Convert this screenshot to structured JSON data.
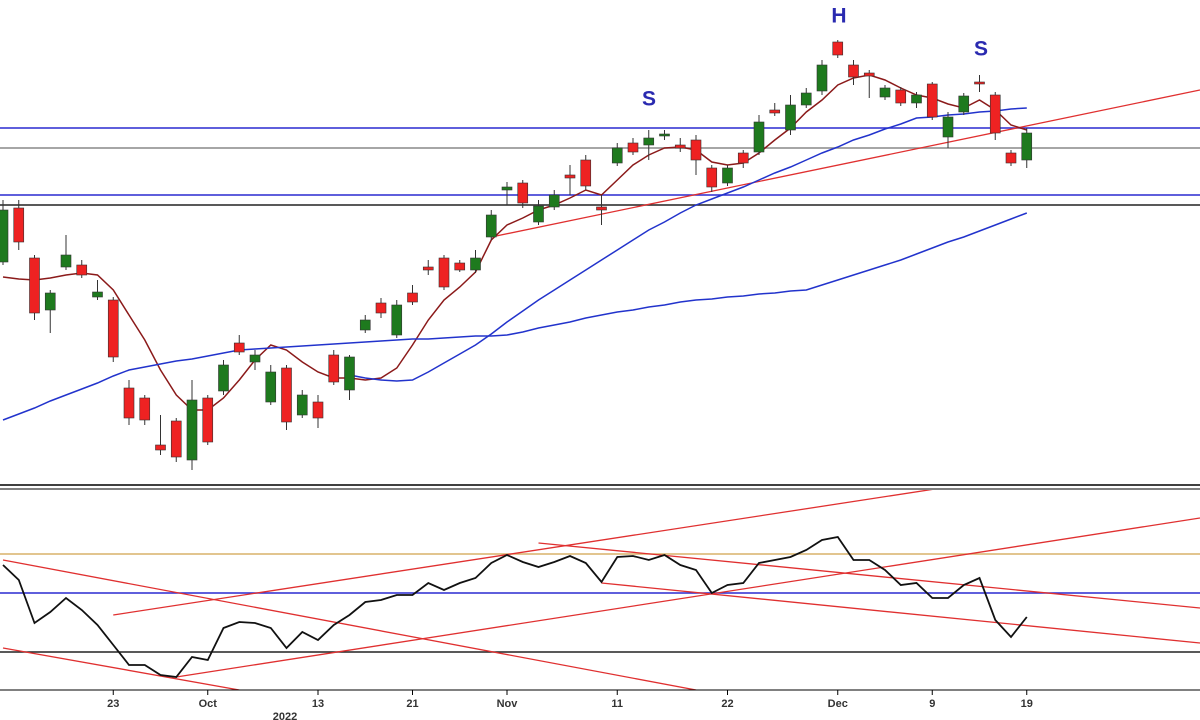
{
  "chart_data": [
    {
      "type": "candlestick",
      "ylim": [
        0,
        485
      ],
      "up_color": "#1e7a1e",
      "down_color": "#ee2222",
      "open": [
        223,
        277,
        227,
        175,
        218,
        220,
        188,
        185,
        97,
        87,
        40,
        64,
        25,
        87,
        94,
        142,
        123,
        83,
        117,
        70,
        83,
        130,
        95,
        155,
        182,
        150,
        192,
        218,
        227,
        222,
        215,
        248,
        295,
        302,
        263,
        278,
        310,
        325,
        278,
        322,
        342,
        340,
        349,
        340,
        345,
        317,
        302,
        332,
        333,
        375,
        355,
        380,
        394,
        443,
        420,
        412,
        388,
        395,
        382,
        401,
        348,
        373,
        403,
        390,
        332,
        325
      ],
      "high": [
        285,
        285,
        230,
        195,
        250,
        225,
        205,
        188,
        105,
        90,
        70,
        67,
        105,
        90,
        125,
        150,
        135,
        120,
        120,
        95,
        90,
        135,
        130,
        170,
        187,
        185,
        200,
        225,
        230,
        225,
        235,
        275,
        303,
        305,
        285,
        295,
        320,
        330,
        290,
        342,
        347,
        355,
        355,
        347,
        350,
        320,
        320,
        335,
        370,
        382,
        390,
        397,
        425,
        445,
        425,
        415,
        400,
        398,
        393,
        403,
        373,
        392,
        410,
        393,
        335,
        357
      ],
      "low": [
        220,
        235,
        165,
        152,
        215,
        207,
        185,
        123,
        60,
        60,
        30,
        23,
        15,
        40,
        90,
        130,
        115,
        80,
        55,
        67,
        57,
        100,
        85,
        152,
        167,
        147,
        180,
        210,
        195,
        213,
        212,
        245,
        280,
        277,
        260,
        275,
        290,
        295,
        260,
        319,
        330,
        325,
        345,
        333,
        310,
        293,
        299,
        317,
        330,
        369,
        350,
        377,
        390,
        427,
        400,
        387,
        385,
        379,
        377,
        365,
        337,
        370,
        393,
        345,
        319,
        317
      ],
      "close": [
        275,
        243,
        172,
        192,
        230,
        210,
        193,
        128,
        67,
        65,
        35,
        28,
        85,
        43,
        120,
        133,
        130,
        113,
        63,
        90,
        67,
        103,
        128,
        165,
        172,
        180,
        183,
        215,
        198,
        215,
        227,
        270,
        298,
        282,
        279,
        290,
        307,
        299,
        275,
        337,
        333,
        347,
        351,
        337,
        325,
        298,
        317,
        322,
        363,
        372,
        380,
        392,
        420,
        430,
        408,
        409,
        397,
        382,
        390,
        368,
        368,
        389,
        401,
        352,
        322,
        352
      ],
      "lines": [
        {
          "color": "#8b1a1a",
          "values": [
            208,
            206,
            205,
            207,
            210,
            212,
            210,
            195,
            170,
            145,
            115,
            90,
            75,
            75,
            87,
            105,
            125,
            140,
            135,
            123,
            113,
            107,
            107,
            105,
            107,
            117,
            140,
            165,
            185,
            198,
            213,
            245,
            260,
            267,
            275,
            280,
            287,
            295,
            290,
            305,
            320,
            330,
            337,
            338,
            335,
            323,
            320,
            322,
            332,
            345,
            357,
            373,
            385,
            400,
            407,
            410,
            405,
            397,
            390,
            387,
            381,
            377,
            385,
            375,
            360,
            355
          ]
        },
        {
          "color": "#2233cc",
          "values": [
            null,
            null,
            null,
            null,
            null,
            null,
            null,
            null,
            null,
            null,
            null,
            null,
            null,
            null,
            null,
            null,
            null,
            null,
            null,
            null,
            null,
            null,
            110,
            107,
            105,
            104,
            105,
            113,
            122,
            131,
            140,
            151,
            163,
            174,
            185,
            195,
            205,
            215,
            225,
            235,
            245,
            255,
            263,
            272,
            280,
            286,
            292,
            298,
            305,
            312,
            318,
            325,
            332,
            338,
            345,
            350,
            356,
            361,
            367,
            368,
            370,
            371,
            373,
            374,
            376,
            377
          ]
        },
        {
          "color": "#2233cc",
          "values": [
            65,
            71,
            77,
            84,
            90,
            96,
            102,
            109,
            115,
            118,
            121,
            124,
            126,
            129,
            132,
            135,
            136,
            137,
            138,
            139,
            140,
            141,
            142,
            143,
            144,
            145,
            146,
            146,
            147,
            148,
            149,
            149,
            150,
            153,
            157,
            160,
            163,
            167,
            170,
            173,
            175,
            178,
            180,
            183,
            185,
            186,
            188,
            189,
            191,
            192,
            194,
            195,
            200,
            205,
            210,
            215,
            220,
            225,
            231,
            237,
            243,
            248,
            254,
            260,
            266,
            272
          ]
        }
      ],
      "levels": [
        {
          "value": 357,
          "color": "#2a2ad0"
        },
        {
          "value": 337,
          "color": "#888888"
        },
        {
          "value": 290,
          "color": "#2a2ad0"
        },
        {
          "value": 280,
          "color": "#222222"
        }
      ],
      "trendlines": [
        {
          "x": [
            31,
            76
          ],
          "y": [
            248,
            395
          ],
          "color": "#e03030"
        }
      ],
      "annotations": [
        "S",
        "H",
        "S"
      ]
    },
    {
      "type": "line",
      "ylim": [
        0,
        205
      ],
      "categories": [
        null,
        null,
        null,
        null,
        null,
        null,
        null,
        "23",
        null,
        null,
        null,
        null,
        null,
        "Oct",
        null,
        null,
        null,
        null,
        null,
        null,
        "13",
        null,
        null,
        null,
        null,
        null,
        "21",
        null,
        null,
        null,
        null,
        null,
        "Nov",
        null,
        null,
        null,
        null,
        null,
        null,
        "11",
        null,
        null,
        null,
        null,
        null,
        null,
        "22",
        null,
        null,
        null,
        null,
        null,
        null,
        "Dec",
        null,
        null,
        null,
        null,
        null,
        "9",
        null,
        null,
        null,
        null,
        null,
        "19"
      ],
      "xlabel": "2022",
      "color": "#111111",
      "values": [
        125,
        110,
        67,
        78,
        92,
        80,
        65,
        45,
        25,
        25,
        15,
        13,
        33,
        30,
        62,
        68,
        67,
        62,
        42,
        58,
        50,
        65,
        75,
        88,
        90,
        95,
        95,
        107,
        100,
        107,
        112,
        127,
        135,
        128,
        123,
        128,
        134,
        127,
        108,
        133,
        134,
        130,
        135,
        125,
        120,
        97,
        105,
        107,
        127,
        130,
        133,
        140,
        150,
        153,
        130,
        130,
        120,
        105,
        107,
        92,
        92,
        105,
        112,
        70,
        53,
        73
      ],
      "levels": [
        {
          "value": 136,
          "color": "#d9b26a"
        },
        {
          "value": 97,
          "color": "#2a2ad0"
        },
        {
          "value": 38,
          "color": "#222222"
        }
      ],
      "trendlines": [
        {
          "x": [
            7,
            60
          ],
          "y": [
            75,
            203
          ],
          "color": "#e03030"
        },
        {
          "x": [
            11,
            76
          ],
          "y": [
            13,
            172
          ],
          "color": "#e03030"
        },
        {
          "x": [
            0,
            44
          ],
          "y": [
            130,
            0
          ],
          "color": "#e03030"
        },
        {
          "x": [
            0,
            15
          ],
          "y": [
            42,
            0
          ],
          "color": "#e03030"
        },
        {
          "x": [
            34,
            76
          ],
          "y": [
            147,
            82
          ],
          "color": "#e03030"
        },
        {
          "x": [
            38,
            76
          ],
          "y": [
            107,
            47
          ],
          "color": "#e03030"
        }
      ]
    }
  ]
}
